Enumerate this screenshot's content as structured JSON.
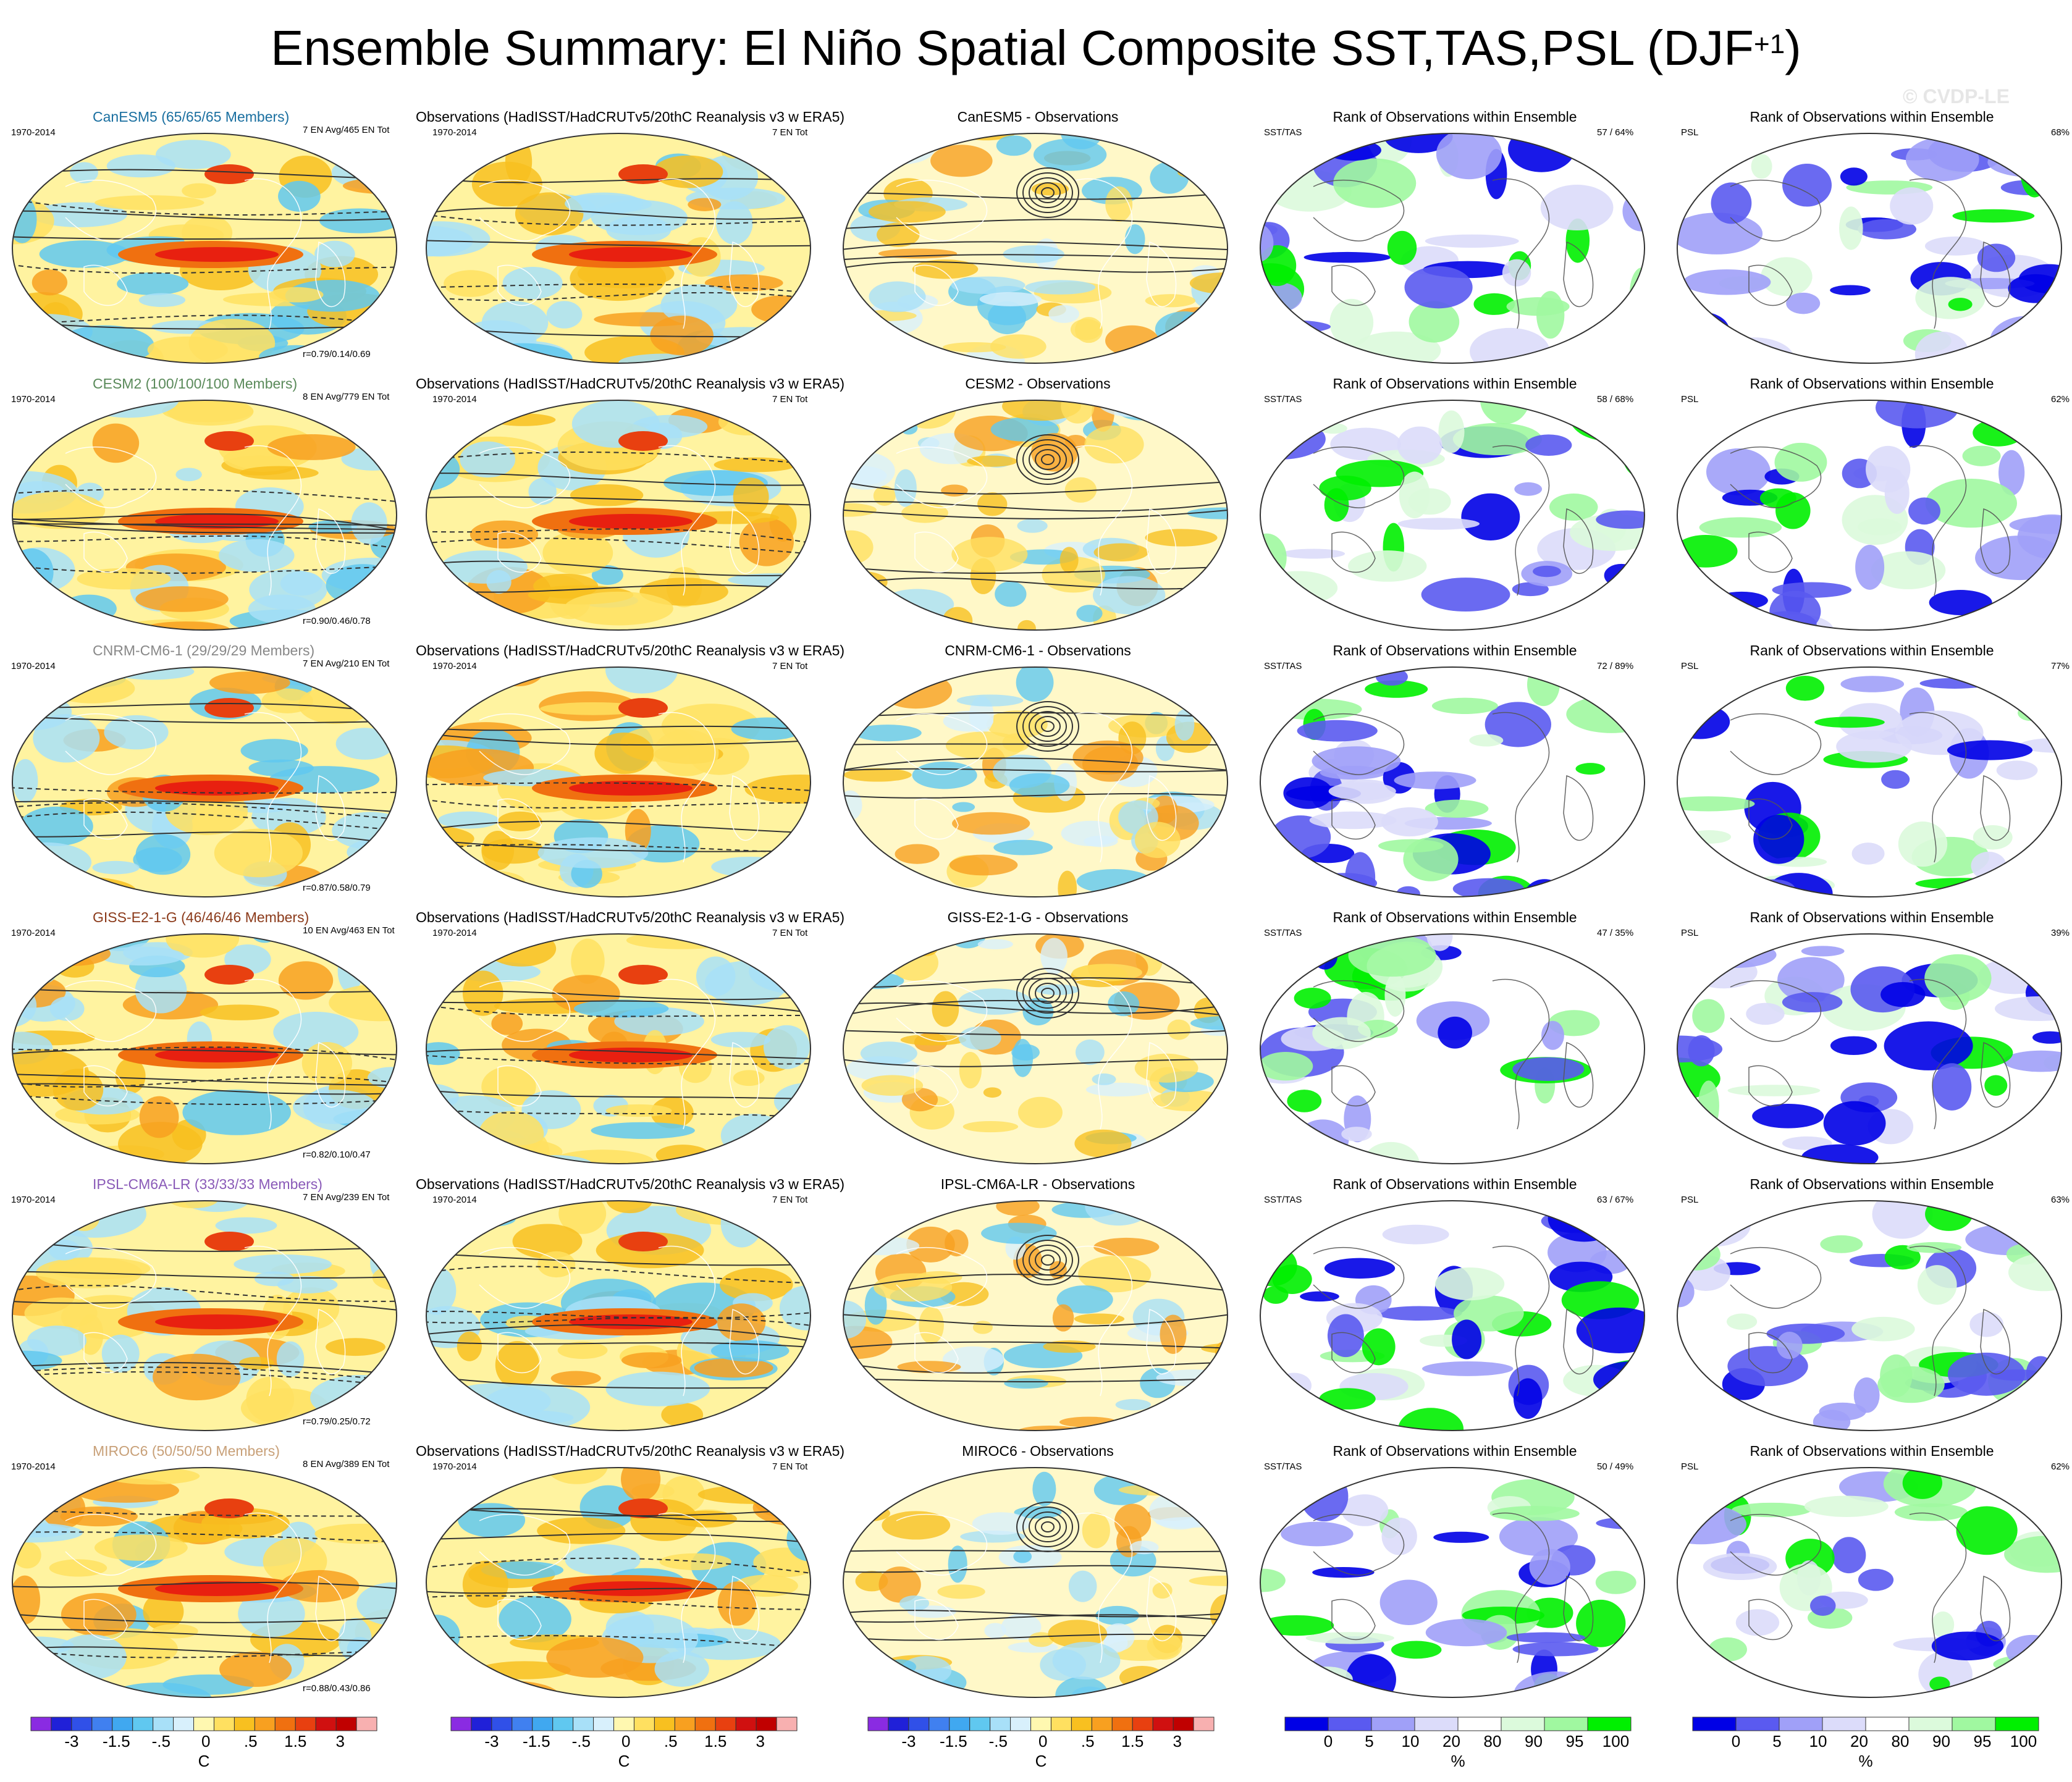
{
  "title": "Ensemble Summary: El Niño Spatial Composite SST,TAS,PSL (DJF",
  "title_sup": "+1",
  "watermark": "© CVDP-LE",
  "period": "1970-2014",
  "obs_title": "Observations (HadISST/HadCRUTv5/20thC Reanalysis v3 w ERA5)",
  "obs_count": "7 EN Tot",
  "rank_title": "Rank of Observations within Ensemble",
  "rank_sst_label": "SST/TAS",
  "rank_psl_label": "PSL",
  "colors": {
    "rank_dark_blue": "#0000e6",
    "rank_green": "#00f000",
    "sst_red": "#e82010",
    "sst_blue": "#40b8f0"
  },
  "rows": [
    {
      "model_title": "CanESM5 (65/65/65 Members)",
      "model_color": "#1a6fa0",
      "model_count": "7 EN Avg/465 EN Tot",
      "corr": "r=0.79/0.14/0.69",
      "diff_title": "CanESM5 - Observations",
      "rank_sst_pct": "57 /  64%",
      "rank_psl_pct": "68%"
    },
    {
      "model_title": "CESM2 (100/100/100 Members)",
      "model_color": "#5a8a5a",
      "model_count": "8 EN Avg/779 EN Tot",
      "corr": "r=0.90/0.46/0.78",
      "diff_title": "CESM2 - Observations",
      "rank_sst_pct": "58 /  68%",
      "rank_psl_pct": "62%"
    },
    {
      "model_title": "CNRM-CM6-1 (29/29/29 Members)",
      "model_color": "#888888",
      "model_count": "7 EN Avg/210 EN Tot",
      "corr": "r=0.87/0.58/0.79",
      "diff_title": "CNRM-CM6-1 - Observations",
      "rank_sst_pct": "72 /  89%",
      "rank_psl_pct": "77%"
    },
    {
      "model_title": "GISS-E2-1-G (46/46/46 Members)",
      "model_color": "#8b3a1a",
      "model_count": "10 EN Avg/463 EN Tot",
      "corr": "r=0.82/0.10/0.47",
      "diff_title": "GISS-E2-1-G - Observations",
      "rank_sst_pct": "47 /  35%",
      "rank_psl_pct": "39%"
    },
    {
      "model_title": "IPSL-CM6A-LR (33/33/33 Members)",
      "model_color": "#8a5ab8",
      "model_count": "7 EN Avg/239 EN Tot",
      "corr": "r=0.79/0.25/0.72",
      "diff_title": "IPSL-CM6A-LR - Observations",
      "rank_sst_pct": "63 /  67%",
      "rank_psl_pct": "63%"
    },
    {
      "model_title": "MIROC6 (50/50/50 Members)",
      "model_color": "#c8a078",
      "model_count": "8 EN Avg/389 EN Tot",
      "corr": "r=0.88/0.43/0.86",
      "diff_title": "MIROC6 - Observations",
      "rank_sst_pct": "50 /  49%",
      "rank_psl_pct": "62%"
    }
  ],
  "colorbar_temp": {
    "units": "C",
    "tick_labels": [
      "-3",
      "-1.5",
      "-.5",
      "0",
      ".5",
      "1.5",
      "3"
    ],
    "colors": [
      "#8a2be2",
      "#2020d8",
      "#3050e8",
      "#4080f0",
      "#40a8f0",
      "#60c8f0",
      "#a8e0f8",
      "#d8f0fc",
      "#fff8b0",
      "#ffe060",
      "#f8c020",
      "#f8a020",
      "#f07010",
      "#e84010",
      "#d01010",
      "#c00000",
      "#f8b0b0"
    ]
  },
  "colorbar_rank": {
    "units": "%",
    "tick_labels": [
      "0",
      "5",
      "10",
      "20",
      "80",
      "90",
      "95",
      "100"
    ],
    "colors": [
      "#0000e6",
      "#5a5af0",
      "#a0a0f8",
      "#dcdcfa",
      "#ffffff",
      "#dcfadc",
      "#a0f8a0",
      "#00f000"
    ]
  },
  "chart_data": [
    {
      "type": "heatmap",
      "description_of_panels": [
        "model ensemble mean composite",
        "observations composite",
        "model minus observations",
        "rank of observations SST/TAS",
        "rank of observations PSL"
      ],
      "colorbar_temperature": {
        "units": "C",
        "ticks": [
          -3,
          -1.5,
          -0.5,
          0,
          0.5,
          1.5,
          3
        ]
      },
      "colorbar_rank": {
        "units": "%",
        "ticks": [
          0,
          5,
          10,
          20,
          80,
          90,
          95,
          100
        ]
      },
      "models": [
        {
          "name": "CanESM5",
          "members": [
            65,
            65,
            65
          ],
          "en_avg": 7,
          "en_tot": 465,
          "pattern_corr": [
            0.79,
            0.14,
            0.69
          ],
          "rank_sst_tas_pct": [
            57,
            64
          ],
          "rank_psl_pct": 68
        },
        {
          "name": "CESM2",
          "members": [
            100,
            100,
            100
          ],
          "en_avg": 8,
          "en_tot": 779,
          "pattern_corr": [
            0.9,
            0.46,
            0.78
          ],
          "rank_sst_tas_pct": [
            58,
            68
          ],
          "rank_psl_pct": 62
        },
        {
          "name": "CNRM-CM6-1",
          "members": [
            29,
            29,
            29
          ],
          "en_avg": 7,
          "en_tot": 210,
          "pattern_corr": [
            0.87,
            0.58,
            0.79
          ],
          "rank_sst_tas_pct": [
            72,
            89
          ],
          "rank_psl_pct": 77
        },
        {
          "name": "GISS-E2-1-G",
          "members": [
            46,
            46,
            46
          ],
          "en_avg": 10,
          "en_tot": 463,
          "pattern_corr": [
            0.82,
            0.1,
            0.47
          ],
          "rank_sst_tas_pct": [
            47,
            35
          ],
          "rank_psl_pct": 39
        },
        {
          "name": "IPSL-CM6A-LR",
          "members": [
            33,
            33,
            33
          ],
          "en_avg": 7,
          "en_tot": 239,
          "pattern_corr": [
            0.79,
            0.25,
            0.72
          ],
          "rank_sst_tas_pct": [
            63,
            67
          ],
          "rank_psl_pct": 63
        },
        {
          "name": "MIROC6",
          "members": [
            50,
            50,
            50
          ],
          "en_avg": 8,
          "en_tot": 389,
          "pattern_corr": [
            0.88,
            0.43,
            0.86
          ],
          "rank_sst_tas_pct": [
            50,
            49
          ],
          "rank_psl_pct": 62
        }
      ],
      "observations_en_tot": 7,
      "period": "1970-2014"
    }
  ]
}
